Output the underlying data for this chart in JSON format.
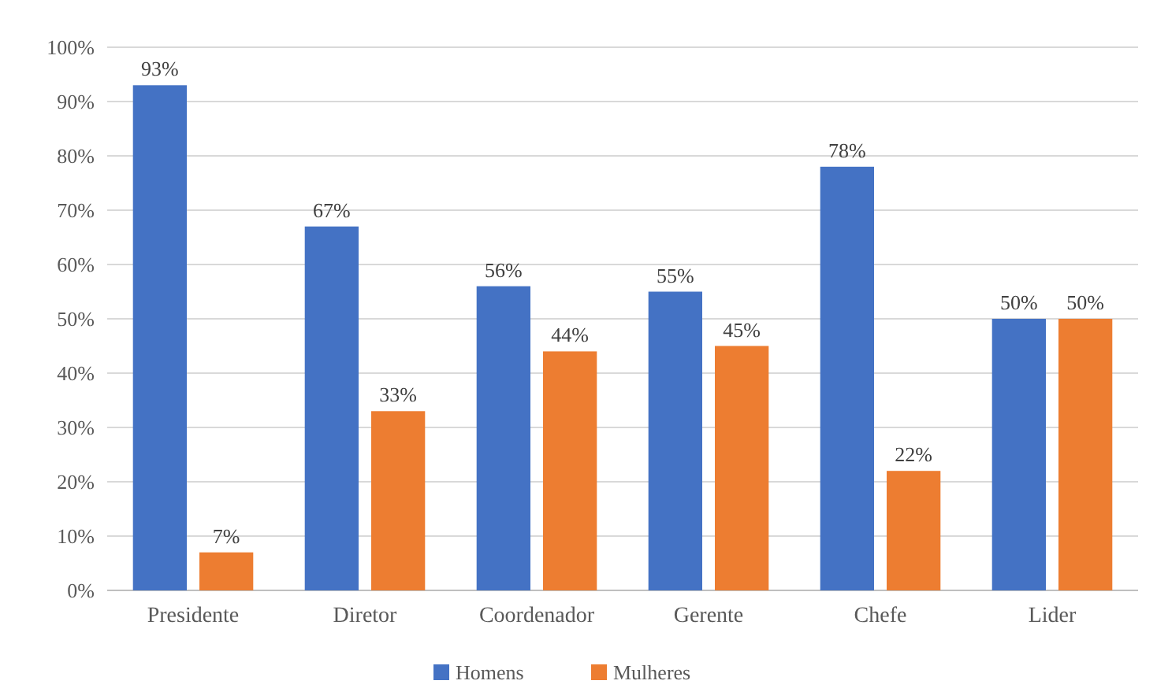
{
  "chart_data": {
    "type": "bar",
    "categories": [
      "Presidente",
      "Diretor",
      "Coordenador",
      "Gerente",
      "Chefe",
      "Lider"
    ],
    "series": [
      {
        "name": "Homens",
        "color": "#4472c4",
        "values": [
          93,
          67,
          56,
          55,
          78,
          50
        ],
        "value_labels": [
          "93%",
          "67%",
          "56%",
          "55%",
          "78%",
          "50%"
        ]
      },
      {
        "name": "Mulheres",
        "color": "#ed7d31",
        "values": [
          7,
          33,
          44,
          45,
          22,
          50
        ],
        "value_labels": [
          "7%",
          "33%",
          "44%",
          "45%",
          "22%",
          "50%"
        ]
      }
    ],
    "ylim": [
      0,
      100
    ],
    "yticks": [
      {
        "value": 0,
        "label": "0%"
      },
      {
        "value": 10,
        "label": "10%"
      },
      {
        "value": 20,
        "label": "20%"
      },
      {
        "value": 30,
        "label": "30%"
      },
      {
        "value": 40,
        "label": "40%"
      },
      {
        "value": 50,
        "label": "50%"
      },
      {
        "value": 60,
        "label": "60%"
      },
      {
        "value": 70,
        "label": "70%"
      },
      {
        "value": 80,
        "label": "80%"
      },
      {
        "value": 90,
        "label": "90%"
      },
      {
        "value": 100,
        "label": "100%"
      }
    ],
    "grid": "y",
    "legend": "bottom"
  }
}
